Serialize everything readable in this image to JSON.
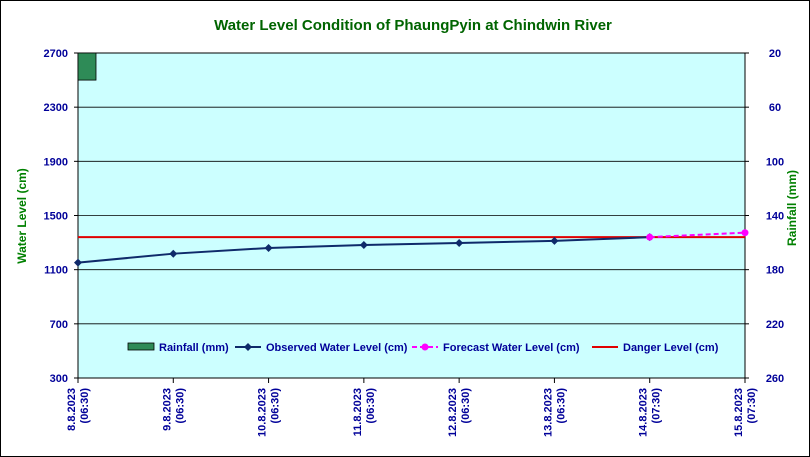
{
  "chart_data": {
    "type": "line",
    "title": "Water Level Condition of PhaungPyin at Chindwin River",
    "ylabel": "Water Level (cm)",
    "y2label": "Rainfall (mm)",
    "ylim": [
      300,
      2700
    ],
    "yticks": [
      300,
      700,
      1100,
      1500,
      1900,
      2300,
      2700
    ],
    "y2lim": [
      260,
      20
    ],
    "y2ticks": [
      20,
      60,
      100,
      140,
      180,
      220,
      260
    ],
    "categories": [
      [
        "8.8.2023",
        "(06:30)"
      ],
      [
        "9.8.2023",
        "(06:30)"
      ],
      [
        "10.8.2023",
        "(06:30)"
      ],
      [
        "11.8.2023",
        "(06:30)"
      ],
      [
        "12.8.2023",
        "(06:30)"
      ],
      [
        "13.8.2023",
        "(06:30)"
      ],
      [
        "14.8.2023",
        "(07:30)"
      ],
      [
        "15.8.2023",
        "(07:30)"
      ]
    ],
    "series": [
      {
        "name": "Rainfall (mm)",
        "kind": "bar",
        "axis": "right",
        "color": "#2e8b57",
        "values": [
          40,
          null,
          null,
          null,
          null,
          null,
          null,
          null
        ]
      },
      {
        "name": "Observed Water Level (cm)",
        "kind": "line",
        "axis": "left",
        "color": "#0f2a6a",
        "marker": "diamond",
        "values": [
          1152,
          1218,
          1260,
          1282,
          1297,
          1313,
          1340,
          null
        ]
      },
      {
        "name": "Forecast Water Level (cm)",
        "kind": "line",
        "axis": "left",
        "color": "#ff00ff",
        "marker": "circle",
        "dashed": true,
        "values": [
          null,
          null,
          null,
          null,
          null,
          null,
          1340,
          1373
        ]
      },
      {
        "name": "Danger Level (cm)",
        "kind": "hline",
        "axis": "left",
        "color": "#e00000",
        "value": 1340
      }
    ],
    "grid": true,
    "legend": "bottom-center",
    "colors": {
      "plot_bg": "#ccffff",
      "title": "#006400",
      "axis_label": "#008000",
      "tick": "#000099"
    }
  }
}
